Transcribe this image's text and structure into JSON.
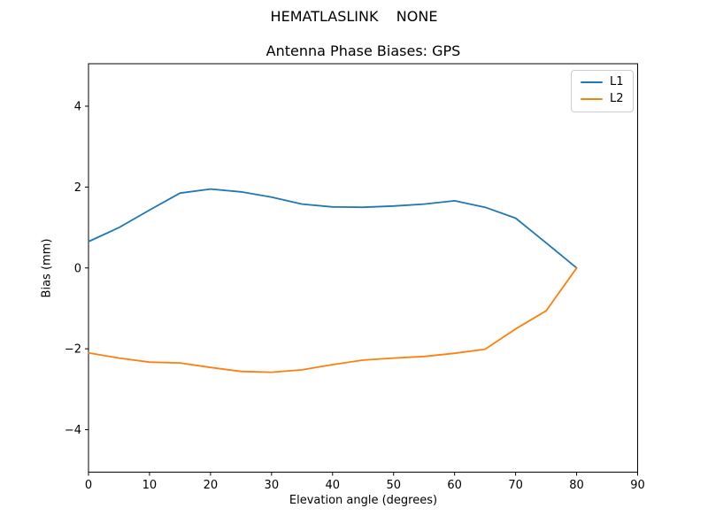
{
  "figure": {
    "suptitle": "HEMATLASLINK    NONE",
    "background": "#ffffff",
    "text_color": "#000000"
  },
  "chart_data": {
    "type": "line",
    "title": "Antenna Phase Biases: GPS",
    "xlabel": "Elevation angle (degrees)",
    "ylabel": "Bias (mm)",
    "xlim": [
      0,
      90
    ],
    "ylim": [
      -5.05,
      5.05
    ],
    "xticks": [
      0,
      10,
      20,
      30,
      40,
      50,
      60,
      70,
      80,
      90
    ],
    "yticks": [
      -4,
      -2,
      0,
      2,
      4
    ],
    "grid": false,
    "axis_color": "#000000",
    "legend_position": "upper right",
    "x": [
      0,
      5,
      10,
      15,
      20,
      25,
      30,
      35,
      40,
      45,
      50,
      55,
      60,
      65,
      70,
      75,
      80
    ],
    "series": [
      {
        "name": "L1",
        "color": "#1f77b4",
        "values": [
          0.65,
          1.0,
          1.43,
          1.85,
          1.95,
          1.88,
          1.75,
          1.58,
          1.51,
          1.5,
          1.53,
          1.58,
          1.66,
          1.5,
          1.23,
          0.62,
          0.0
        ]
      },
      {
        "name": "L2",
        "color": "#ff7f0e",
        "values": [
          -2.1,
          -2.23,
          -2.33,
          -2.35,
          -2.46,
          -2.56,
          -2.58,
          -2.52,
          -2.39,
          -2.28,
          -2.23,
          -2.19,
          -2.11,
          -2.01,
          -1.51,
          -1.06,
          0.0
        ]
      }
    ]
  }
}
